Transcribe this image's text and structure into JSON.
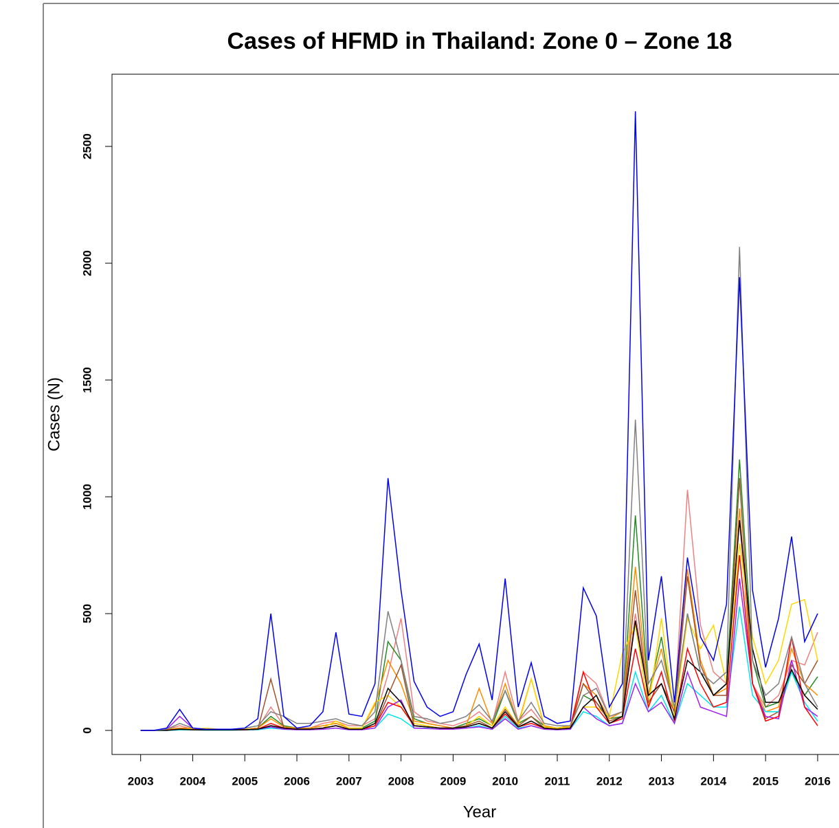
{
  "chart_data": {
    "type": "line",
    "title": "Cases of HFMD in Thailand: Zone 0 – Zone 18",
    "x_label": "Year",
    "y_label": "Cases (N)",
    "xlim": [
      2002.45,
      2016.41
    ],
    "ylim": [
      -103,
      2809
    ],
    "xticks": [
      2003,
      2004,
      2005,
      2006,
      2007,
      2008,
      2009,
      2010,
      2011,
      2012,
      2013,
      2014,
      2015,
      2016
    ],
    "yticks": [
      0,
      500,
      1000,
      1500,
      2000,
      2500
    ],
    "x": [
      2003,
      2003.25,
      2003.5,
      2003.75,
      2004,
      2004.25,
      2004.5,
      2004.75,
      2005,
      2005.25,
      2005.5,
      2005.75,
      2006,
      2006.25,
      2006.5,
      2006.75,
      2007,
      2007.25,
      2007.5,
      2007.75,
      2008,
      2008.25,
      2008.5,
      2008.75,
      2009,
      2009.25,
      2009.5,
      2009.75,
      2010,
      2010.25,
      2010.5,
      2010.75,
      2011,
      2011.25,
      2011.5,
      2011.75,
      2012,
      2012.25,
      2012.5,
      2012.75,
      2013,
      2013.25,
      2013.5,
      2013.75,
      2014,
      2014.25,
      2014.5,
      2014.75,
      2015,
      2015.25,
      2015.5,
      2015.75,
      2016
    ],
    "series": [
      {
        "color": "#f08080",
        "values": [
          0,
          0,
          5,
          20,
          5,
          5,
          5,
          5,
          5,
          10,
          100,
          20,
          10,
          10,
          30,
          40,
          20,
          20,
          50,
          240,
          480,
          80,
          40,
          30,
          20,
          40,
          80,
          30,
          250,
          40,
          90,
          20,
          10,
          20,
          250,
          200,
          60,
          80,
          500,
          150,
          200,
          80,
          1030,
          450,
          250,
          200,
          900,
          200,
          100,
          150,
          300,
          280,
          420
        ]
      },
      {
        "color": "#228b22",
        "values": [
          0,
          0,
          5,
          10,
          5,
          5,
          5,
          5,
          5,
          10,
          60,
          20,
          10,
          10,
          20,
          30,
          10,
          10,
          40,
          380,
          300,
          50,
          30,
          20,
          10,
          30,
          50,
          20,
          170,
          30,
          60,
          20,
          10,
          20,
          150,
          120,
          50,
          60,
          920,
          150,
          400,
          60,
          500,
          250,
          150,
          200,
          1160,
          300,
          100,
          120,
          250,
          150,
          230
        ]
      },
      {
        "color": "#ff8c00",
        "values": [
          0,
          0,
          3,
          10,
          10,
          3,
          3,
          3,
          5,
          10,
          50,
          15,
          10,
          10,
          20,
          30,
          10,
          10,
          110,
          300,
          200,
          40,
          30,
          20,
          10,
          20,
          180,
          30,
          200,
          30,
          220,
          20,
          10,
          20,
          200,
          150,
          50,
          80,
          700,
          150,
          350,
          80,
          690,
          300,
          150,
          180,
          950,
          200,
          80,
          100,
          350,
          200,
          150
        ]
      },
      {
        "color": "#ffd700",
        "values": [
          0,
          0,
          5,
          5,
          5,
          10,
          5,
          5,
          5,
          5,
          20,
          10,
          5,
          5,
          10,
          40,
          10,
          10,
          120,
          150,
          100,
          30,
          20,
          10,
          10,
          20,
          60,
          20,
          100,
          20,
          220,
          15,
          10,
          15,
          100,
          100,
          60,
          330,
          450,
          100,
          480,
          60,
          480,
          350,
          450,
          200,
          800,
          400,
          200,
          300,
          540,
          560,
          300
        ]
      },
      {
        "color": "#a0522d",
        "values": [
          0,
          0,
          2,
          5,
          3,
          2,
          2,
          2,
          3,
          5,
          220,
          10,
          5,
          5,
          10,
          20,
          5,
          5,
          20,
          150,
          280,
          20,
          15,
          10,
          10,
          20,
          40,
          10,
          90,
          20,
          60,
          10,
          5,
          10,
          200,
          120,
          40,
          60,
          600,
          120,
          200,
          80,
          660,
          280,
          150,
          150,
          1080,
          200,
          50,
          80,
          280,
          200,
          300
        ]
      },
      {
        "color": "#00e5ee",
        "values": [
          0,
          0,
          0,
          2,
          2,
          1,
          1,
          1,
          2,
          3,
          10,
          5,
          3,
          3,
          5,
          10,
          3,
          3,
          10,
          70,
          50,
          10,
          10,
          5,
          5,
          10,
          20,
          5,
          60,
          10,
          20,
          5,
          3,
          5,
          80,
          60,
          20,
          30,
          250,
          80,
          150,
          30,
          200,
          150,
          100,
          100,
          530,
          150,
          80,
          80,
          250,
          120,
          40
        ]
      },
      {
        "color": "#a020f0",
        "values": [
          0,
          0,
          5,
          60,
          10,
          3,
          3,
          3,
          3,
          5,
          15,
          5,
          3,
          3,
          5,
          10,
          3,
          3,
          10,
          100,
          130,
          10,
          8,
          5,
          5,
          10,
          15,
          5,
          50,
          5,
          20,
          5,
          3,
          5,
          100,
          50,
          20,
          30,
          200,
          80,
          120,
          30,
          250,
          100,
          80,
          60,
          650,
          200,
          60,
          50,
          300,
          100,
          60
        ]
      },
      {
        "color": "#ff0000",
        "values": [
          0,
          0,
          2,
          5,
          3,
          2,
          2,
          2,
          3,
          5,
          30,
          10,
          5,
          5,
          10,
          20,
          5,
          5,
          20,
          120,
          100,
          20,
          15,
          10,
          10,
          15,
          30,
          10,
          70,
          15,
          30,
          10,
          5,
          10,
          250,
          100,
          30,
          50,
          350,
          100,
          250,
          40,
          350,
          200,
          100,
          120,
          750,
          200,
          40,
          60,
          400,
          100,
          20
        ]
      },
      {
        "color": "#000000",
        "values": [
          0,
          0,
          0,
          5,
          3,
          2,
          2,
          2,
          3,
          5,
          20,
          10,
          5,
          5,
          10,
          20,
          5,
          5,
          30,
          180,
          120,
          20,
          15,
          10,
          10,
          15,
          30,
          10,
          80,
          15,
          40,
          10,
          5,
          10,
          100,
          150,
          30,
          60,
          470,
          150,
          200,
          50,
          300,
          250,
          150,
          200,
          900,
          350,
          120,
          120,
          260,
          150,
          90
        ]
      },
      {
        "color": "#808080",
        "values": [
          0,
          0,
          5,
          30,
          10,
          5,
          5,
          5,
          10,
          20,
          80,
          60,
          30,
          30,
          40,
          50,
          30,
          20,
          80,
          510,
          300,
          60,
          50,
          30,
          40,
          60,
          110,
          40,
          170,
          40,
          120,
          30,
          20,
          20,
          150,
          180,
          60,
          80,
          1330,
          200,
          300,
          100,
          500,
          250,
          200,
          250,
          2070,
          300,
          150,
          200,
          400,
          200,
          100
        ]
      },
      {
        "color": "#0000ee",
        "values": [
          0,
          0,
          10,
          90,
          10,
          5,
          5,
          5,
          10,
          50,
          500,
          60,
          10,
          20,
          80,
          420,
          70,
          60,
          200,
          1080,
          600,
          210,
          100,
          60,
          80,
          240,
          370,
          130,
          650,
          100,
          290,
          60,
          30,
          40,
          610,
          490,
          100,
          200,
          2650,
          300,
          660,
          120,
          740,
          400,
          300,
          540,
          1940,
          600,
          270,
          480,
          830,
          380,
          500
        ]
      }
    ]
  }
}
